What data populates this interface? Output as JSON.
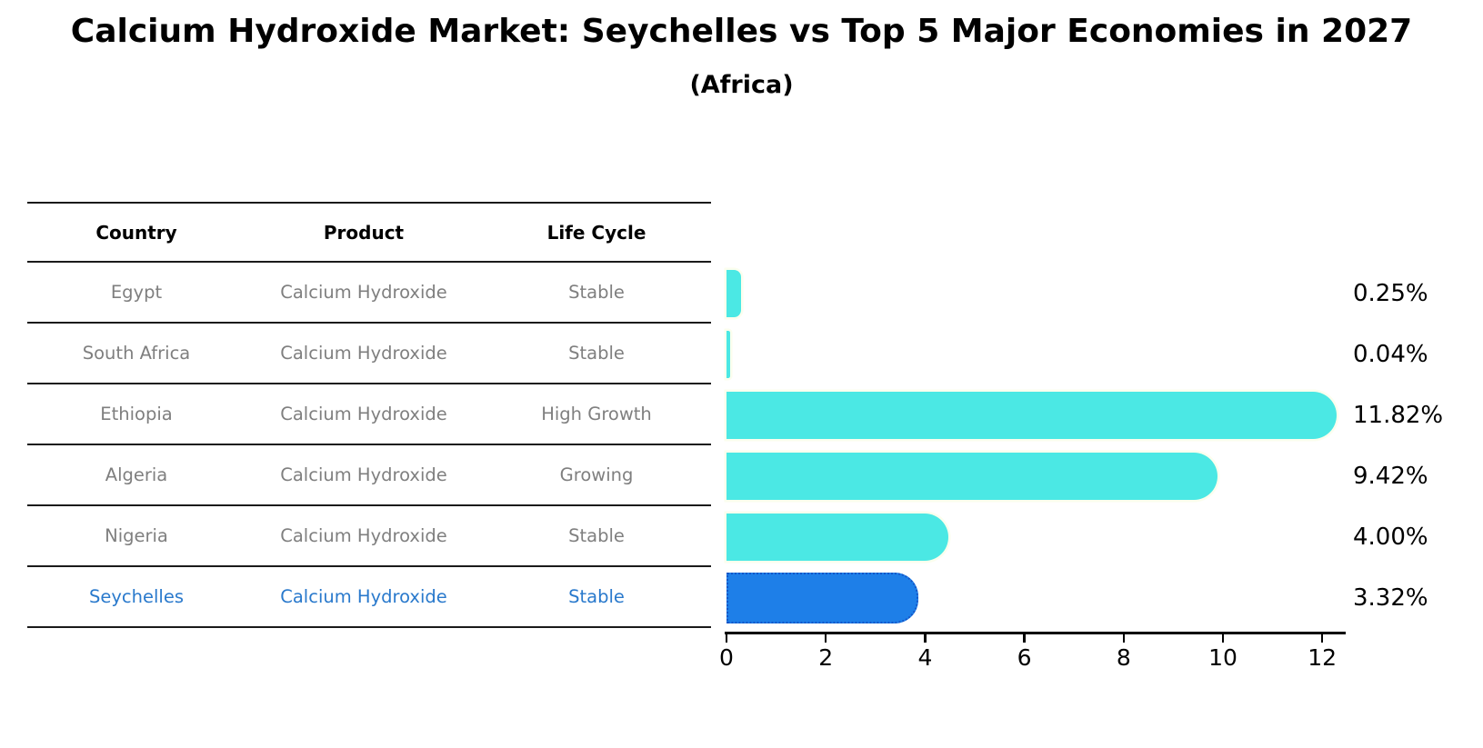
{
  "header": {
    "title": "Calcium Hydroxide Market: Seychelles vs Top 5 Major Economies in 2027",
    "subtitle": "(Africa)"
  },
  "table": {
    "headers": [
      "Country",
      "Product",
      "Life Cycle"
    ],
    "rows": [
      {
        "country": "Egypt",
        "product": "Calcium Hydroxide",
        "life_cycle": "Stable",
        "highlight": false
      },
      {
        "country": "South Africa",
        "product": "Calcium Hydroxide",
        "life_cycle": "Stable",
        "highlight": false
      },
      {
        "country": "Ethiopia",
        "product": "Calcium Hydroxide",
        "life_cycle": "High Growth",
        "highlight": false
      },
      {
        "country": "Algeria",
        "product": "Calcium Hydroxide",
        "life_cycle": "Growing",
        "highlight": false
      },
      {
        "country": "Nigeria",
        "product": "Calcium Hydroxide",
        "life_cycle": "Stable",
        "highlight": false
      },
      {
        "country": "Seychelles",
        "product": "Calcium Hydroxide",
        "life_cycle": "Stable",
        "highlight": true
      }
    ]
  },
  "chart_data": {
    "type": "bar",
    "orientation": "horizontal",
    "title": "Calcium Hydroxide Market: Seychelles vs Top 5 Major Economies in 2027",
    "subtitle": "(Africa)",
    "categories": [
      "Egypt",
      "South Africa",
      "Ethiopia",
      "Algeria",
      "Nigeria",
      "Seychelles"
    ],
    "values": [
      0.25,
      0.04,
      11.82,
      9.42,
      4.0,
      3.32
    ],
    "value_labels": [
      "0.25%",
      "0.04%",
      "11.82%",
      "9.42%",
      "4.00%",
      "3.32%"
    ],
    "xlim": [
      0,
      12.45
    ],
    "xticks": [
      0,
      2,
      4,
      6,
      8,
      10,
      12
    ],
    "grid": false,
    "legend": "none",
    "bar_color": "#4BE8E4",
    "highlight": {
      "index": 5,
      "color": "#1E7FE8",
      "border_color": "#1456C8",
      "border_style": "dotted"
    }
  },
  "colors": {
    "background": "#ffffff",
    "title_text": "#000000",
    "row_text": "#7f7f7f",
    "highlight_text": "#2979CC",
    "table_line": "#1a1a1a",
    "axis": "#000000",
    "bar_cyan": "#4BE8E4",
    "bar_blue": "#1E7FE8"
  }
}
